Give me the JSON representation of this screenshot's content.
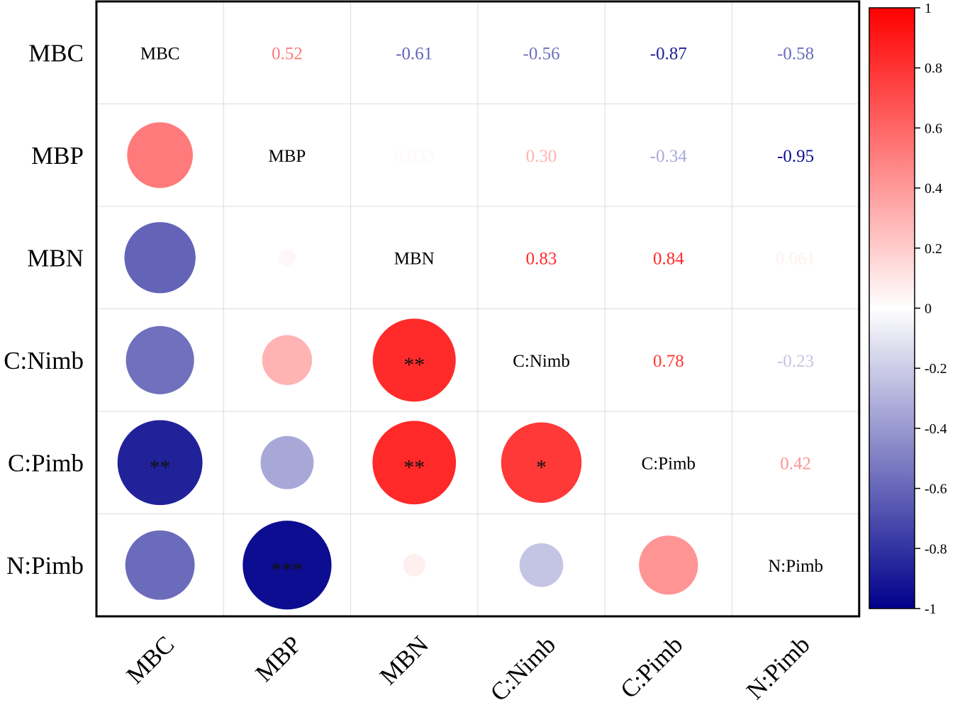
{
  "chart_data": {
    "type": "correlation-matrix",
    "variables": [
      "MBC",
      "MBP",
      "MBN",
      "C:Nimb",
      "C:Pimb",
      "N:Pimb"
    ],
    "values": [
      [
        1,
        0.52,
        -0.61,
        -0.56,
        -0.87,
        -0.58
      ],
      [
        0.52,
        1,
        0.033,
        0.3,
        -0.34,
        -0.95
      ],
      [
        -0.61,
        0.033,
        1,
        0.83,
        0.84,
        0.061
      ],
      [
        -0.56,
        0.3,
        0.83,
        1,
        0.78,
        -0.23
      ],
      [
        -0.87,
        -0.34,
        0.84,
        0.78,
        1,
        0.42
      ],
      [
        -0.58,
        -0.95,
        0.061,
        -0.23,
        0.42,
        1
      ]
    ],
    "value_labels": [
      [
        "",
        "0.52",
        "-0.61",
        "-0.56",
        "-0.87",
        "-0.58"
      ],
      [
        "",
        "",
        "0.033",
        "0.30",
        "-0.34",
        "-0.95"
      ],
      [
        "",
        "",
        "",
        "0.83",
        "0.84",
        "0.061"
      ],
      [
        "",
        "",
        "",
        "",
        "0.78",
        "-0.23"
      ],
      [
        "",
        "",
        "",
        "",
        "",
        "0.42"
      ],
      [
        "",
        "",
        "",
        "",
        "",
        ""
      ]
    ],
    "significance": [
      [
        "",
        "",
        "",
        "",
        "",
        ""
      ],
      [
        "",
        "",
        "",
        "",
        "",
        ""
      ],
      [
        "",
        "",
        "",
        "",
        "",
        ""
      ],
      [
        "",
        "",
        "**",
        "",
        "",
        ""
      ],
      [
        "**",
        "",
        "**",
        "*",
        "",
        ""
      ],
      [
        "",
        "***",
        "",
        "",
        "",
        ""
      ]
    ],
    "upper_triangle": "numbers",
    "lower_triangle": "circles",
    "diagonal": "variable names",
    "colorbar": {
      "range": [
        -1,
        1
      ],
      "ticks": [
        "1",
        "0.8",
        "0.6",
        "0.4",
        "0.2",
        "0",
        "-0.2",
        "-0.4",
        "-0.6",
        "-0.8",
        "-1"
      ],
      "colors": {
        "high": "#ff0000",
        "mid": "#ffffff",
        "low": "#00008b"
      }
    }
  }
}
